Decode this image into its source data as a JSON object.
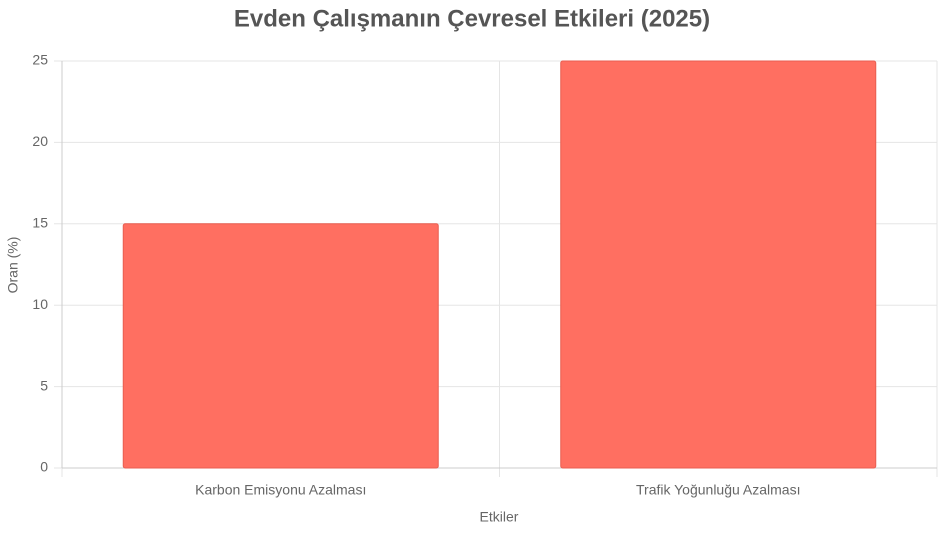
{
  "chart_data": {
    "type": "bar",
    "title": "Evden Çalışmanın Çevresel Etkileri (2025)",
    "x_label": "Etkiler",
    "y_label": "Oran (%)",
    "categories": [
      "Karbon Emisyonu Azalması",
      "Trafik Yoğunluğu Azalması"
    ],
    "values": [
      15,
      25
    ],
    "color": "#ff6f61",
    "ylim": [
      0,
      25
    ],
    "yticks": [
      0,
      5,
      10,
      15,
      20,
      25
    ],
    "grid": true
  }
}
